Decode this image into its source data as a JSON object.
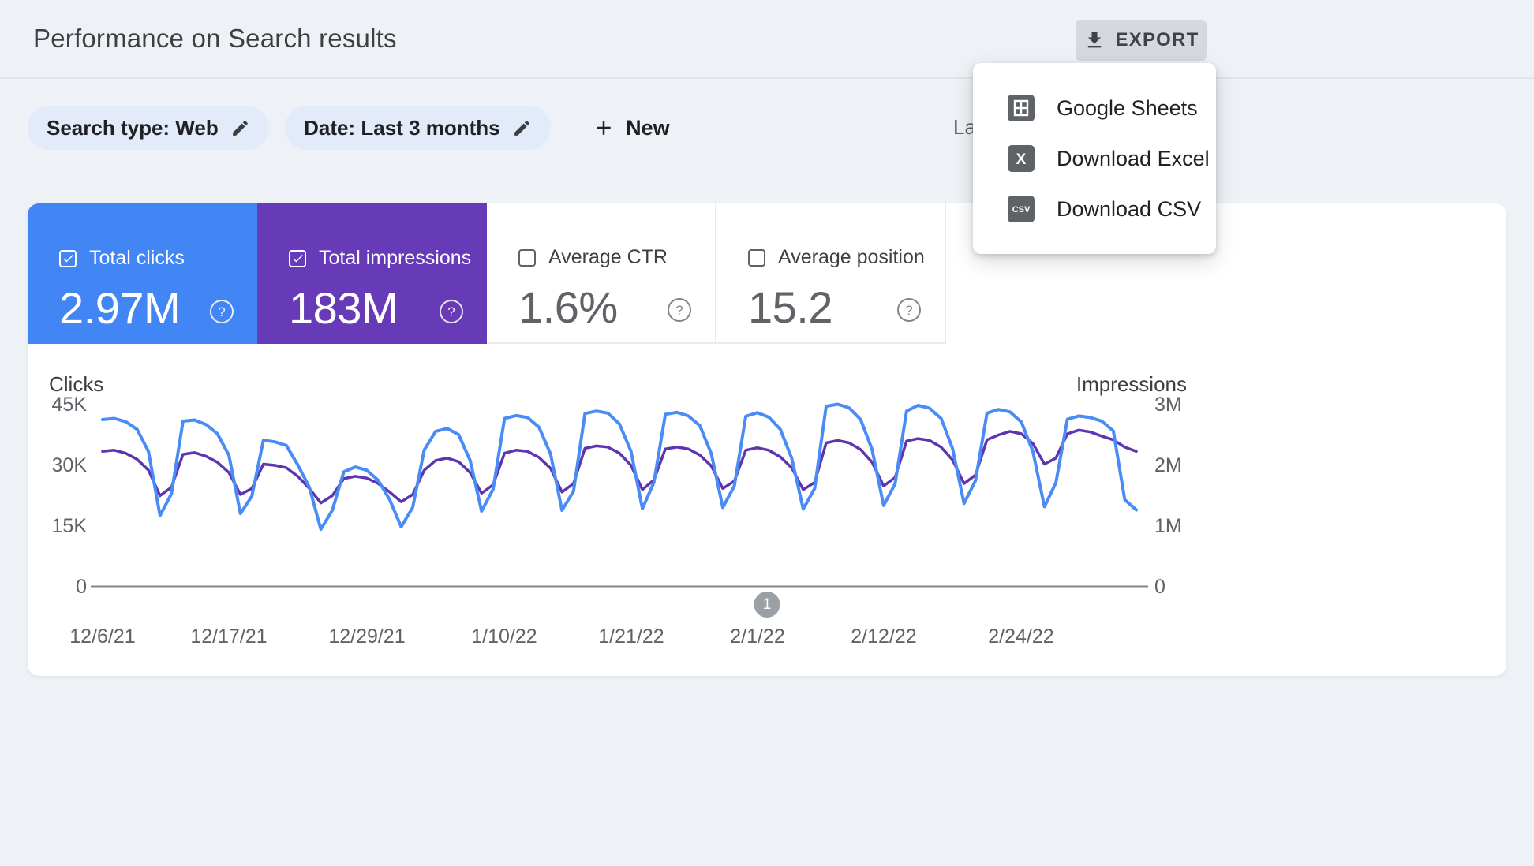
{
  "page": {
    "title": "Performance on Search results"
  },
  "toolbar": {
    "export_label": "EXPORT"
  },
  "export_menu": {
    "items": [
      {
        "label": "Google Sheets",
        "icon": "sheets-icon"
      },
      {
        "label": "Download Excel",
        "icon": "excel-icon",
        "badge": "X"
      },
      {
        "label": "Download CSV",
        "icon": "csv-icon",
        "badge": "CSV"
      }
    ]
  },
  "filters": {
    "search_type_chip": "Search type: Web",
    "date_chip": "Date: Last 3 months",
    "new_button": "New",
    "last_updated_partial": "La"
  },
  "metrics": {
    "cards": [
      {
        "label": "Total clicks",
        "value": "2.97M",
        "checked": true,
        "color": "#4285f4"
      },
      {
        "label": "Total impressions",
        "value": "183M",
        "checked": true,
        "color": "#673ab7"
      },
      {
        "label": "Average CTR",
        "value": "1.6%",
        "checked": false
      },
      {
        "label": "Average position",
        "value": "15.2",
        "checked": false
      }
    ]
  },
  "chart_data": {
    "type": "line",
    "title": "Performance on Search results",
    "legend_position": "none",
    "grid": false,
    "left_axis": {
      "label": "Clicks",
      "ticks": [
        "45K",
        "30K",
        "15K",
        "0"
      ],
      "max": 45,
      "unit": "K"
    },
    "right_axis": {
      "label": "Impressions",
      "ticks": [
        "3M",
        "2M",
        "1M",
        "0"
      ],
      "max": 3,
      "unit": "M"
    },
    "x_ticks": [
      {
        "index": 0,
        "label": "12/6/21"
      },
      {
        "index": 11,
        "label": "12/17/21"
      },
      {
        "index": 23,
        "label": "12/29/21"
      },
      {
        "index": 35,
        "label": "1/10/22"
      },
      {
        "index": 46,
        "label": "1/21/22"
      },
      {
        "index": 57,
        "label": "2/1/22"
      },
      {
        "index": 68,
        "label": "2/12/22"
      },
      {
        "index": 80,
        "label": "2/24/22"
      }
    ],
    "series": [
      {
        "name": "Clicks",
        "axis": "left",
        "axis_max": 45,
        "unit": "K",
        "color": "#4a8cf5",
        "values": [
          41.3,
          41.6,
          40.8,
          38.9,
          33.4,
          17.6,
          23.0,
          40.9,
          41.2,
          40.1,
          37.8,
          32.5,
          18.1,
          22.4,
          36.2,
          35.8,
          34.9,
          30.1,
          24.6,
          14.2,
          18.9,
          28.4,
          29.6,
          28.8,
          26.3,
          21.5,
          14.8,
          19.6,
          33.8,
          38.4,
          39.1,
          37.6,
          31.2,
          18.7,
          24.1,
          41.6,
          42.3,
          41.8,
          39.4,
          32.8,
          18.9,
          23.6,
          42.8,
          43.4,
          42.9,
          40.2,
          33.5,
          19.3,
          25.8,
          42.6,
          43.1,
          42.2,
          39.8,
          32.9,
          19.6,
          24.9,
          42.1,
          43.0,
          41.9,
          38.9,
          31.8,
          19.2,
          24.3,
          44.6,
          45.1,
          44.2,
          41.3,
          33.9,
          20.1,
          25.4,
          43.4,
          44.8,
          44.1,
          41.6,
          34.2,
          20.6,
          26.2,
          42.9,
          43.8,
          43.2,
          40.7,
          33.4,
          19.8,
          25.7,
          41.4,
          42.2,
          41.8,
          40.9,
          38.5,
          21.5,
          19.0
        ]
      },
      {
        "name": "Impressions",
        "axis": "right",
        "axis_max": 3,
        "unit": "M",
        "color": "#5e35b1",
        "values": [
          2.23,
          2.25,
          2.2,
          2.1,
          1.92,
          1.5,
          1.64,
          2.18,
          2.21,
          2.15,
          2.05,
          1.88,
          1.52,
          1.62,
          2.02,
          2.0,
          1.96,
          1.82,
          1.62,
          1.38,
          1.5,
          1.78,
          1.82,
          1.79,
          1.7,
          1.56,
          1.4,
          1.52,
          1.92,
          2.08,
          2.12,
          2.06,
          1.88,
          1.54,
          1.68,
          2.2,
          2.25,
          2.23,
          2.13,
          1.95,
          1.56,
          1.7,
          2.28,
          2.32,
          2.3,
          2.2,
          2.0,
          1.6,
          1.76,
          2.27,
          2.3,
          2.27,
          2.17,
          1.99,
          1.62,
          1.74,
          2.25,
          2.29,
          2.25,
          2.14,
          1.96,
          1.6,
          1.72,
          2.37,
          2.41,
          2.37,
          2.26,
          2.05,
          1.66,
          1.8,
          2.4,
          2.44,
          2.41,
          2.3,
          2.09,
          1.7,
          1.84,
          2.42,
          2.5,
          2.56,
          2.52,
          2.36,
          2.02,
          2.12,
          2.52,
          2.58,
          2.55,
          2.48,
          2.42,
          2.3,
          2.23
        ]
      }
    ],
    "pagination": {
      "current_page": "1"
    }
  }
}
